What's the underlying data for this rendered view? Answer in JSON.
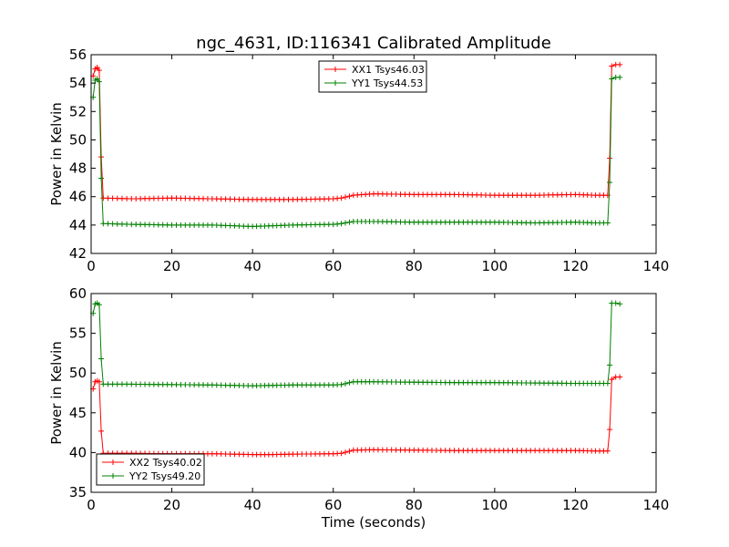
{
  "title": "ngc_4631, ID:116341 Calibrated Amplitude",
  "chart_data": [
    {
      "type": "line",
      "ylabel": "Power in Kelvin",
      "xlabel": "",
      "xlim": [
        0,
        140
      ],
      "ylim": [
        42,
        56
      ],
      "xticks": [
        "0",
        "20",
        "40",
        "60",
        "80",
        "100",
        "120",
        "140"
      ],
      "yticks": [
        "42",
        "44",
        "46",
        "48",
        "50",
        "52",
        "54",
        "56"
      ],
      "grid": false,
      "legend_position": "top-center",
      "series": [
        {
          "name": "XX1 Tsys46.03",
          "color": "#ff0000",
          "points": [
            [
              0.5,
              54.5
            ],
            [
              1,
              55.0
            ],
            [
              1.5,
              55.1
            ],
            [
              2,
              54.9
            ],
            [
              2.5,
              48.8
            ],
            [
              3,
              45.9
            ],
            [
              10,
              45.85
            ],
            [
              20,
              45.9
            ],
            [
              30,
              45.85
            ],
            [
              40,
              45.8
            ],
            [
              50,
              45.8
            ],
            [
              60,
              45.85
            ],
            [
              62,
              45.9
            ],
            [
              65,
              46.1
            ],
            [
              70,
              46.2
            ],
            [
              80,
              46.15
            ],
            [
              90,
              46.15
            ],
            [
              100,
              46.1
            ],
            [
              110,
              46.1
            ],
            [
              120,
              46.15
            ],
            [
              125,
              46.1
            ],
            [
              128,
              46.1
            ],
            [
              128.5,
              48.7
            ],
            [
              129,
              55.2
            ],
            [
              130,
              55.3
            ],
            [
              131,
              55.3
            ]
          ]
        },
        {
          "name": "YY1 Tsys44.53",
          "color": "#008000",
          "points": [
            [
              0.5,
              53.0
            ],
            [
              1,
              54.2
            ],
            [
              1.5,
              54.3
            ],
            [
              2,
              54.1
            ],
            [
              2.5,
              47.3
            ],
            [
              3,
              44.1
            ],
            [
              10,
              44.05
            ],
            [
              20,
              44.0
            ],
            [
              30,
              44.0
            ],
            [
              40,
              43.9
            ],
            [
              45,
              43.95
            ],
            [
              50,
              44.0
            ],
            [
              60,
              44.05
            ],
            [
              62,
              44.1
            ],
            [
              65,
              44.25
            ],
            [
              70,
              44.25
            ],
            [
              80,
              44.2
            ],
            [
              90,
              44.2
            ],
            [
              100,
              44.2
            ],
            [
              110,
              44.15
            ],
            [
              120,
              44.2
            ],
            [
              125,
              44.15
            ],
            [
              128,
              44.15
            ],
            [
              128.5,
              47.0
            ],
            [
              129,
              54.3
            ],
            [
              130,
              54.4
            ],
            [
              131,
              54.4
            ]
          ]
        }
      ]
    },
    {
      "type": "line",
      "ylabel": "Power in Kelvin",
      "xlabel": "Time (seconds)",
      "xlim": [
        0,
        140
      ],
      "ylim": [
        35,
        60
      ],
      "xticks": [
        "0",
        "20",
        "40",
        "60",
        "80",
        "100",
        "120",
        "140"
      ],
      "yticks": [
        "35",
        "40",
        "45",
        "50",
        "55",
        "60"
      ],
      "grid": false,
      "legend_position": "bottom-left",
      "series": [
        {
          "name": "XX2 Tsys40.02",
          "color": "#ff0000",
          "points": [
            [
              0.5,
              48.0
            ],
            [
              1,
              48.9
            ],
            [
              1.5,
              49.0
            ],
            [
              2,
              48.9
            ],
            [
              2.5,
              42.7
            ],
            [
              3,
              39.9
            ],
            [
              10,
              39.9
            ],
            [
              20,
              39.85
            ],
            [
              30,
              39.85
            ],
            [
              40,
              39.75
            ],
            [
              45,
              39.75
            ],
            [
              50,
              39.8
            ],
            [
              60,
              39.85
            ],
            [
              62,
              39.9
            ],
            [
              65,
              40.3
            ],
            [
              70,
              40.35
            ],
            [
              80,
              40.3
            ],
            [
              90,
              40.25
            ],
            [
              100,
              40.25
            ],
            [
              110,
              40.25
            ],
            [
              120,
              40.25
            ],
            [
              125,
              40.2
            ],
            [
              128,
              40.2
            ],
            [
              128.5,
              42.9
            ],
            [
              129,
              49.2
            ],
            [
              130,
              49.5
            ],
            [
              131,
              49.5
            ]
          ]
        },
        {
          "name": "YY2 Tsys49.20",
          "color": "#008000",
          "points": [
            [
              0.5,
              57.5
            ],
            [
              1,
              58.7
            ],
            [
              1.5,
              58.8
            ],
            [
              2,
              58.6
            ],
            [
              2.5,
              51.8
            ],
            [
              3,
              48.6
            ],
            [
              10,
              48.6
            ],
            [
              20,
              48.55
            ],
            [
              30,
              48.5
            ],
            [
              40,
              48.4
            ],
            [
              45,
              48.45
            ],
            [
              50,
              48.5
            ],
            [
              60,
              48.5
            ],
            [
              62,
              48.55
            ],
            [
              65,
              48.9
            ],
            [
              70,
              48.9
            ],
            [
              80,
              48.85
            ],
            [
              90,
              48.8
            ],
            [
              100,
              48.8
            ],
            [
              110,
              48.75
            ],
            [
              120,
              48.7
            ],
            [
              125,
              48.7
            ],
            [
              128,
              48.7
            ],
            [
              128.5,
              51.0
            ],
            [
              129,
              58.8
            ],
            [
              130,
              58.8
            ],
            [
              131,
              58.7
            ]
          ]
        }
      ]
    }
  ]
}
